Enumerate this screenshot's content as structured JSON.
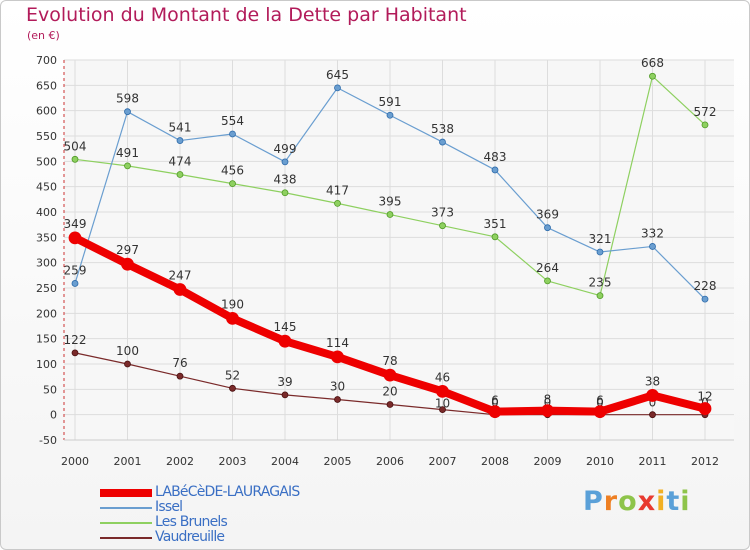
{
  "chart_data": {
    "type": "line",
    "title": "Evolution du Montant de la Dette par Habitant",
    "subtitle": "(en €)",
    "xlabel": "",
    "ylabel": "",
    "categories": [
      "2000",
      "2001",
      "2002",
      "2003",
      "2004",
      "2005",
      "2006",
      "2007",
      "2008",
      "2009",
      "2010",
      "2011",
      "2012"
    ],
    "ylim": [
      -50,
      700
    ],
    "yticks": [
      -50,
      0,
      50,
      100,
      150,
      200,
      250,
      300,
      350,
      400,
      450,
      500,
      550,
      600,
      650,
      700
    ],
    "grid": true,
    "legend_position": "bottom-left",
    "series": [
      {
        "name": "LABéCèDE-LAURAGAIS",
        "color": "#ee0000",
        "values": [
          349,
          297,
          247,
          190,
          145,
          114,
          78,
          46,
          6,
          8,
          6,
          38,
          12
        ]
      },
      {
        "name": "Issel",
        "color": "#6a9ed0",
        "values": [
          259,
          598,
          541,
          554,
          499,
          645,
          591,
          538,
          483,
          369,
          321,
          332,
          228
        ]
      },
      {
        "name": "Les Brunels",
        "color": "#8ed060",
        "values": [
          504,
          491,
          474,
          456,
          438,
          417,
          395,
          373,
          351,
          264,
          235,
          668,
          572
        ]
      },
      {
        "name": "Vaudreuille",
        "color": "#7a2a2a",
        "values": [
          122,
          100,
          76,
          52,
          39,
          30,
          20,
          10,
          0,
          0,
          0,
          0,
          0
        ]
      }
    ]
  },
  "logo": {
    "text": "Proxiti",
    "letters": [
      "P",
      "r",
      "o",
      "x",
      "i",
      "t",
      "i"
    ],
    "colors": [
      "#5aa0d8",
      "#ee7f22",
      "#8ec44a",
      "#e83a30",
      "#f2b024",
      "#5aa0d8",
      "#8ec44a"
    ]
  }
}
